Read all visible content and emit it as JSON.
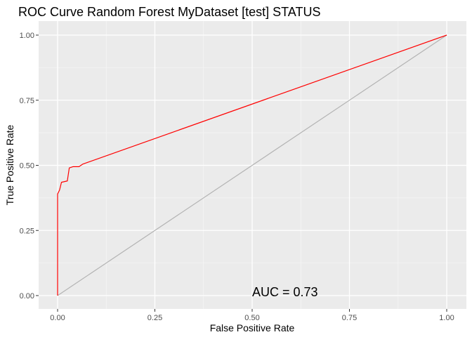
{
  "chart_data": {
    "type": "line",
    "title": "ROC Curve Random Forest MyDataset [test] STATUS",
    "xlabel": "False Positive Rate",
    "ylabel": "True Positive Rate",
    "xlim": [
      0,
      1
    ],
    "ylim": [
      0,
      1
    ],
    "x_ticks": [
      "0.00",
      "0.25",
      "0.50",
      "0.75",
      "1.00"
    ],
    "y_ticks": [
      "0.00",
      "0.25",
      "0.50",
      "0.75",
      "1.00"
    ],
    "grid": true,
    "annotation": {
      "text": "AUC = 0.73",
      "x": 0.5,
      "y": 0.0
    },
    "series": [
      {
        "color": "#ff0000",
        "x": [
          0.0,
          0.0,
          0.005,
          0.01,
          0.025,
          0.03,
          0.04,
          0.055,
          0.065,
          1.0
        ],
        "y": [
          0.0,
          0.39,
          0.405,
          0.435,
          0.44,
          0.49,
          0.495,
          0.495,
          0.505,
          1.0
        ]
      },
      {
        "color": "#b3b3b3",
        "x": [
          0.0,
          1.0
        ],
        "y": [
          0.0,
          1.0
        ]
      }
    ]
  }
}
